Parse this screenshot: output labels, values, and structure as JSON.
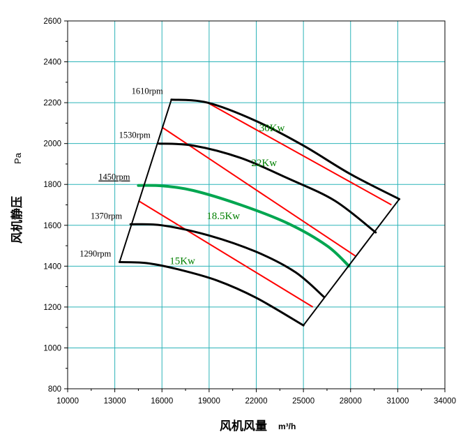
{
  "chart_data": {
    "type": "line",
    "xlabel": "风机风量",
    "xlabel_unit": "m³/h",
    "ylabel": "风机静压",
    "ylabel_unit": "Pa",
    "xlim": [
      10000,
      34000
    ],
    "ylim": [
      800,
      2600
    ],
    "x_ticks": [
      10000,
      13000,
      16000,
      19000,
      22000,
      25000,
      28000,
      31000,
      34000
    ],
    "y_ticks": [
      800,
      1000,
      1200,
      1400,
      1600,
      1800,
      2000,
      2200,
      2400,
      2600
    ],
    "grid": true,
    "speed_curves": [
      {
        "label": "1610rpm",
        "highlighted": false,
        "color": "#000000",
        "points": [
          [
            16600,
            2215
          ],
          [
            18900,
            2200
          ],
          [
            22000,
            2110
          ],
          [
            25000,
            1990
          ],
          [
            28000,
            1850
          ],
          [
            31100,
            1728
          ]
        ]
      },
      {
        "label": "1530rpm",
        "highlighted": false,
        "color": "#000000",
        "points": [
          [
            15800,
            2000
          ],
          [
            18000,
            1990
          ],
          [
            21000,
            1930
          ],
          [
            24000,
            1830
          ],
          [
            27000,
            1720
          ],
          [
            29600,
            1565
          ]
        ]
      },
      {
        "label": "1450rpm",
        "highlighted": true,
        "color": "#00a650",
        "points": [
          [
            14500,
            1795
          ],
          [
            16000,
            1793
          ],
          [
            18000,
            1770
          ],
          [
            21000,
            1700
          ],
          [
            24000,
            1610
          ],
          [
            26500,
            1500
          ],
          [
            27900,
            1400
          ]
        ]
      },
      {
        "label": "1370rpm",
        "highlighted": false,
        "color": "#000000",
        "points": [
          [
            14000,
            1605
          ],
          [
            16000,
            1600
          ],
          [
            19000,
            1550
          ],
          [
            22000,
            1470
          ],
          [
            24500,
            1370
          ],
          [
            26300,
            1250
          ]
        ]
      },
      {
        "label": "1290rpm",
        "highlighted": false,
        "color": "#000000",
        "points": [
          [
            13300,
            1420
          ],
          [
            15000,
            1415
          ],
          [
            17000,
            1385
          ],
          [
            19500,
            1330
          ],
          [
            22000,
            1245
          ],
          [
            25000,
            1110
          ]
        ]
      }
    ],
    "power_lines": [
      {
        "label": "30Kw",
        "points": [
          [
            18900,
            2200
          ],
          [
            30600,
            1700
          ]
        ]
      },
      {
        "label": "22Kw",
        "points": [
          [
            16000,
            2080
          ],
          [
            28300,
            1450
          ]
        ]
      },
      {
        "label": "18.5Kw",
        "points": [
          [
            14500,
            1720
          ],
          [
            25600,
            1200
          ]
        ]
      }
    ],
    "power_labels": [
      {
        "label": "30Kw",
        "x": 23000,
        "y": 2060
      },
      {
        "label": "22Kw",
        "x": 22500,
        "y": 1890
      },
      {
        "label": "18.5Kw",
        "x": 19900,
        "y": 1630
      },
      {
        "label": "15Kw",
        "x": 17300,
        "y": 1410
      }
    ],
    "label_rpm_color_highlight": "#e00000",
    "power_line_color": "#ff0000",
    "power_label_color": "#008000",
    "boundary_color": "#000000"
  }
}
